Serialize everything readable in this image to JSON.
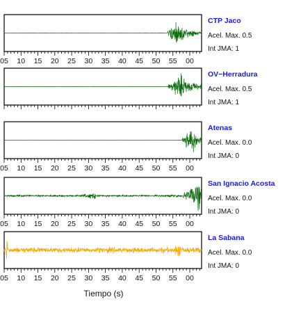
{
  "chart_data": {
    "type": "line",
    "xlabel": "Tiempo (s)",
    "x_tick_labels": [
      "05",
      "10",
      "15",
      "20",
      "25",
      "30",
      "35",
      "40",
      "45",
      "50",
      "55",
      "00"
    ],
    "xlim": [
      5,
      63.5
    ],
    "grid": false,
    "series": [
      {
        "name": "CTP Jaco",
        "color": "#0a6b0a",
        "acel_label": "Acel. Max. 0.5",
        "jma_label": "Int JMA: 1",
        "bursts": [
          [
            53.3,
            63.5,
            0.15,
            1.0,
            2.5,
            0.95
          ]
        ],
        "base": 0.012,
        "show_ticks": true
      },
      {
        "name": "OV−Herradura",
        "color": "#0a6b0a",
        "acel_label": "Acel. Max. 0.5",
        "jma_label": "Int JMA: 1",
        "bursts": [
          [
            53.6,
            63.5,
            0.15,
            0.95,
            3.5,
            1.0
          ]
        ],
        "base": 0.012,
        "show_ticks": false
      },
      {
        "name": "Atenas",
        "color": "#0a6b0a",
        "acel_label": "Acel. Max. 0.0",
        "jma_label": "Int JMA: 0",
        "bursts": [
          [
            57.8,
            63.5,
            0.25,
            0.95,
            3.0,
            0.95
          ]
        ],
        "base": 0.008,
        "show_ticks": true
      },
      {
        "name": "San Ignacio Acosta",
        "color": "#0a6b0a",
        "acel_label": "Acel. Max. 0.0",
        "jma_label": "Int JMA: 0",
        "bursts": [
          [
            27.5,
            32.0,
            0.08,
            0.3,
            29.5,
            0.9
          ],
          [
            52.0,
            56.5,
            0.05,
            0.15,
            54.0,
            0.9
          ],
          [
            57.5,
            63.5,
            0.1,
            1.0,
            5.0,
            0.9
          ]
        ],
        "base": 0.07,
        "show_ticks": true
      },
      {
        "name": "La Sabana",
        "color": "#f5a800",
        "acel_label": "Acel. Max. 0.0",
        "jma_label": "Int JMA: 0",
        "bursts": [
          [
            5.3,
            6.3,
            0.5,
            0.95,
            0.5,
            1.0
          ],
          [
            55.6,
            57.3,
            0.45,
            1.0,
            1.0,
            1.0
          ]
        ],
        "base": 0.22,
        "show_ticks": true
      }
    ]
  }
}
